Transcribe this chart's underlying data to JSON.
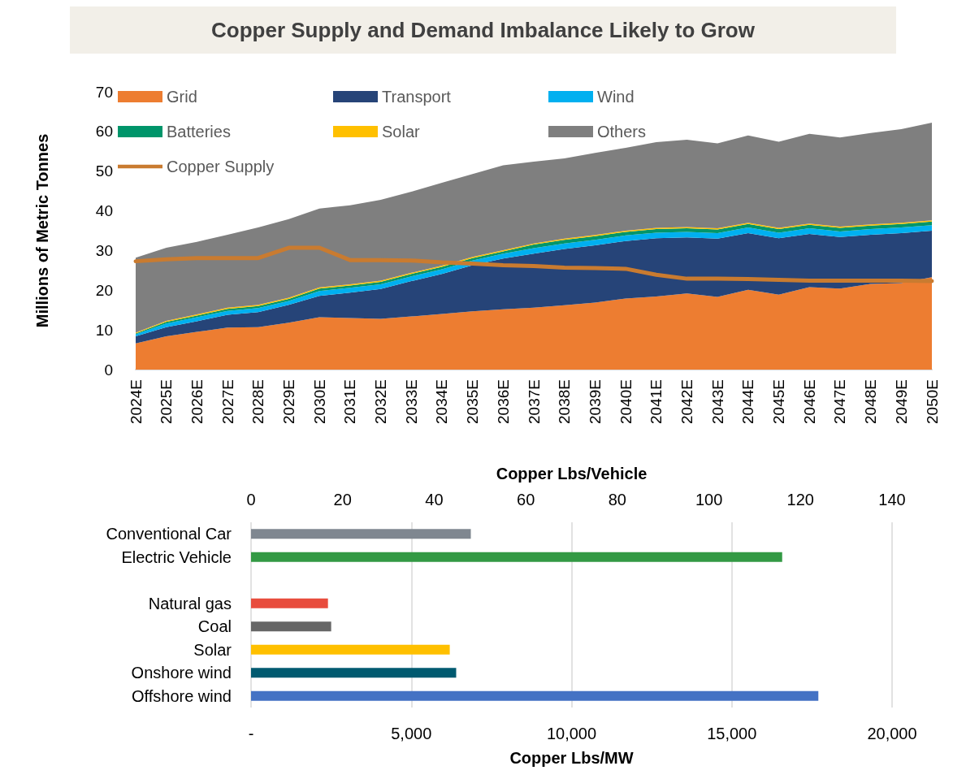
{
  "chart_data": [
    {
      "type": "area",
      "title": "Copper Supply and Demand Imbalance Likely to Grow",
      "ylabel": "Millions of Metric Tonnes",
      "stacked": true,
      "legend": "top left",
      "categories": [
        "2024E",
        "2025E",
        "2026E",
        "2027E",
        "2028E",
        "2029E",
        "2030E",
        "2031E",
        "2032E",
        "2033E",
        "2034E",
        "2035E",
        "2036E",
        "2037E",
        "2038E",
        "2039E",
        "2040E",
        "2041E",
        "2042E",
        "2043E",
        "2044E",
        "2045E",
        "2046E",
        "2047E",
        "2048E",
        "2049E",
        "2050E"
      ],
      "ylim": [
        0,
        70
      ],
      "yticks": [
        0,
        10,
        20,
        30,
        40,
        50,
        60,
        70
      ],
      "series": [
        {
          "name": "Grid",
          "color": "#ed7d31",
          "values": [
            6.6,
            8.4,
            9.5,
            10.6,
            10.7,
            11.8,
            13.2,
            13.0,
            12.8,
            13.4,
            14.0,
            14.7,
            15.2,
            15.6,
            16.2,
            16.9,
            17.9,
            18.4,
            19.2,
            18.3,
            20.1,
            18.9,
            20.8,
            20.4,
            21.6,
            21.8,
            23.3
          ]
        },
        {
          "name": "Transport",
          "color": "#264478",
          "values": [
            1.8,
            2.3,
            2.7,
            3.2,
            3.8,
            4.5,
            5.4,
            6.4,
            7.5,
            8.9,
            10.1,
            11.6,
            12.8,
            13.6,
            14.2,
            14.4,
            14.5,
            14.7,
            14.1,
            14.7,
            14.3,
            14.2,
            13.4,
            13.0,
            12.4,
            12.6,
            11.7
          ]
        },
        {
          "name": "Wind",
          "color": "#00b0f0",
          "values": [
            0.5,
            0.9,
            1.0,
            1.0,
            1.0,
            1.0,
            1.2,
            1.2,
            1.2,
            1.2,
            1.2,
            1.2,
            1.2,
            1.4,
            1.4,
            1.4,
            1.4,
            1.4,
            1.4,
            1.4,
            1.4,
            1.4,
            1.4,
            1.4,
            1.4,
            1.4,
            1.4
          ]
        },
        {
          "name": "Batteries",
          "color": "#00956a",
          "values": [
            0.2,
            0.4,
            0.4,
            0.5,
            0.5,
            0.5,
            0.6,
            0.6,
            0.6,
            0.6,
            0.6,
            0.6,
            0.6,
            0.9,
            0.9,
            0.9,
            0.9,
            0.9,
            0.9,
            0.9,
            0.9,
            0.9,
            0.9,
            0.9,
            0.9,
            0.9,
            0.9
          ]
        },
        {
          "name": "Solar",
          "color": "#ffc000",
          "values": [
            0.2,
            0.3,
            0.3,
            0.3,
            0.3,
            0.3,
            0.3,
            0.3,
            0.3,
            0.3,
            0.3,
            0.3,
            0.3,
            0.3,
            0.3,
            0.3,
            0.3,
            0.3,
            0.3,
            0.3,
            0.3,
            0.3,
            0.3,
            0.3,
            0.3,
            0.3,
            0.3
          ]
        },
        {
          "name": "Others",
          "color": "#7f7f7f",
          "values": [
            18.9,
            18.4,
            18.3,
            18.4,
            19.5,
            19.8,
            19.9,
            19.9,
            20.4,
            20.4,
            20.9,
            20.9,
            21.4,
            20.6,
            20.2,
            20.7,
            20.9,
            21.6,
            22.0,
            21.4,
            22.0,
            21.7,
            22.6,
            22.5,
            23.0,
            23.6,
            24.6
          ]
        },
        {
          "name": "Copper Supply",
          "type": "line",
          "color": "#c97b30",
          "values": [
            27.3,
            27.8,
            28.1,
            28.1,
            28.1,
            30.7,
            30.7,
            27.6,
            27.6,
            27.5,
            27.0,
            26.7,
            26.3,
            26.1,
            25.7,
            25.6,
            25.4,
            23.9,
            22.9,
            22.9,
            22.8,
            22.6,
            22.4,
            22.4,
            22.4,
            22.4,
            22.3
          ]
        }
      ]
    },
    {
      "type": "bar",
      "orientation": "horizontal",
      "xlabel": "Copper Lbs/MW",
      "x2label": "Copper Lbs/Vehicle",
      "grid": "x",
      "categories": [
        "Conventional Car",
        "Electric Vehicle",
        null,
        "Natural gas",
        "Coal",
        "Solar",
        "Onshore wind",
        "Offshore wind"
      ],
      "xlim": [
        0,
        20000
      ],
      "xticks": [
        {
          "value": 0,
          "label": "-"
        },
        {
          "value": 5000,
          "label": "5,000"
        },
        {
          "value": 10000,
          "label": "10,000"
        },
        {
          "value": 15000,
          "label": "15,000"
        },
        {
          "value": 20000,
          "label": "20,000"
        }
      ],
      "x2lim": [
        0,
        140
      ],
      "x2ticks": [
        0,
        20,
        40,
        60,
        80,
        100,
        120,
        140
      ],
      "series": [
        {
          "axis": "x2",
          "colors": [
            "#7f8790",
            "#339944",
            null,
            null,
            null,
            null,
            null,
            null
          ],
          "values": [
            48,
            116,
            null,
            null,
            null,
            null,
            null,
            null
          ]
        },
        {
          "colors": [
            null,
            null,
            null,
            "#e84c3d",
            "#666666",
            "#ffc000",
            "#005a70",
            "#4472c4"
          ],
          "values": [
            null,
            null,
            null,
            2400,
            2500,
            6200,
            6400,
            17700
          ]
        }
      ]
    }
  ]
}
